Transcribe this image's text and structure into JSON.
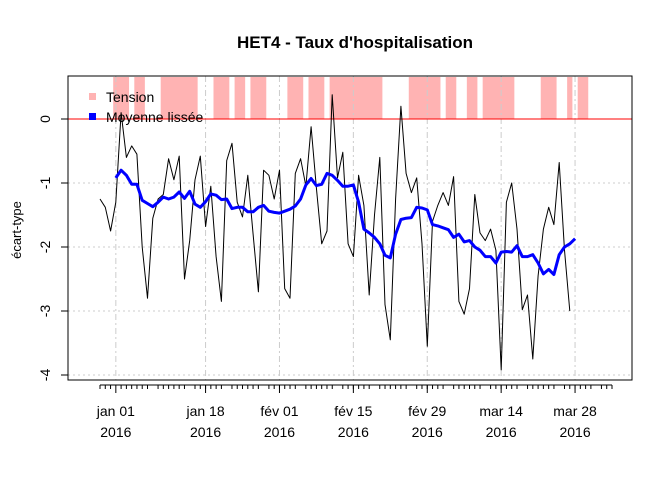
{
  "chart_data": {
    "type": "line",
    "title": "HET4 - Taux d'hospitalisation",
    "ylabel": "écart-type",
    "xlabel": "",
    "ylim": [
      -4.1,
      0.7
    ],
    "yticks": [
      0,
      -1,
      -2,
      -3,
      -4
    ],
    "grid": true,
    "legend_position": "top-left",
    "colors": {
      "raw": "#000000",
      "smoothed": "#0000ff",
      "tension": "#ffb3b3",
      "zero_line": "#ff0000",
      "grid": "#cccccc"
    },
    "x_start_date": "2015-12-29",
    "x_end_date": "2016-04-04",
    "x_ticks": [
      {
        "date": "2016-01-01",
        "line1": "jan 01",
        "line2": "2016"
      },
      {
        "date": "2016-01-18",
        "line1": "jan 18",
        "line2": "2016"
      },
      {
        "date": "2016-02-01",
        "line1": "fév 01",
        "line2": "2016"
      },
      {
        "date": "2016-02-15",
        "line1": "fév 15",
        "line2": "2016"
      },
      {
        "date": "2016-02-29",
        "line1": "fév 29",
        "line2": "2016"
      },
      {
        "date": "2016-03-14",
        "line1": "mar 14",
        "line2": "2016"
      },
      {
        "date": "2016-03-28",
        "line1": "mar 28",
        "line2": "2016"
      }
    ],
    "series": [
      {
        "name": "Tension",
        "kind": "bars",
        "periods": [
          [
            "2016-01-01",
            "2016-01-03"
          ],
          [
            "2016-01-05",
            "2016-01-06"
          ],
          [
            "2016-01-10",
            "2016-01-16"
          ],
          [
            "2016-01-20",
            "2016-01-22"
          ],
          [
            "2016-01-24",
            "2016-01-25"
          ],
          [
            "2016-01-27",
            "2016-01-29"
          ],
          [
            "2016-02-03",
            "2016-02-05"
          ],
          [
            "2016-02-07",
            "2016-02-09"
          ],
          [
            "2016-02-11",
            "2016-02-20"
          ],
          [
            "2016-02-26",
            "2016-03-02"
          ],
          [
            "2016-03-04",
            "2016-03-05"
          ],
          [
            "2016-03-08",
            "2016-03-09"
          ],
          [
            "2016-03-11",
            "2016-03-16"
          ],
          [
            "2016-03-22",
            "2016-03-24"
          ],
          [
            "2016-03-27",
            "2016-03-27"
          ],
          [
            "2016-03-29",
            "2016-03-30"
          ]
        ]
      },
      {
        "name": "",
        "kind": "line",
        "start": "2015-12-29",
        "values": [
          -1.25,
          -1.38,
          -1.75,
          -1.3,
          0.1,
          -0.6,
          -0.42,
          -0.55,
          -2.0,
          -2.8,
          -1.55,
          -1.25,
          -1.18,
          -0.62,
          -0.95,
          -0.58,
          -2.5,
          -1.9,
          -0.95,
          -0.58,
          -1.68,
          -1.05,
          -2.15,
          -2.85,
          -0.65,
          -0.38,
          -1.3,
          -1.53,
          -0.88,
          -1.8,
          -2.7,
          -0.8,
          -0.88,
          -1.25,
          -0.8,
          -2.65,
          -2.8,
          -0.85,
          -0.62,
          -1.05,
          -0.12,
          -1.08,
          -1.95,
          -1.75,
          0.38,
          -0.92,
          -0.52,
          -1.95,
          -2.15,
          -0.88,
          -1.35,
          -2.75,
          -1.5,
          -0.6,
          -2.9,
          -3.45,
          -1.25,
          0.2,
          -0.85,
          -1.15,
          -0.92,
          -1.95,
          -3.55,
          -1.6,
          -1.35,
          -1.15,
          -1.35,
          -0.9,
          -2.85,
          -3.05,
          -2.65,
          -1.18,
          -1.78,
          -1.9,
          -1.72,
          -2.05,
          -3.92,
          -1.3,
          -1.0,
          -1.72,
          -2.98,
          -2.75,
          -3.75,
          -2.45,
          -1.72,
          -1.38,
          -1.65,
          -0.68,
          -2.05,
          -3.0
        ],
        "color": "#000000"
      },
      {
        "name": "Moyenne lissée",
        "kind": "line",
        "start": "2016-01-01",
        "values": [
          -0.92,
          -0.8,
          -0.88,
          -1.02,
          -1.02,
          -1.27,
          -1.32,
          -1.37,
          -1.3,
          -1.22,
          -1.25,
          -1.22,
          -1.14,
          -1.24,
          -1.13,
          -1.33,
          -1.38,
          -1.29,
          -1.17,
          -1.19,
          -1.26,
          -1.25,
          -1.4,
          -1.38,
          -1.38,
          -1.45,
          -1.45,
          -1.38,
          -1.35,
          -1.44,
          -1.46,
          -1.47,
          -1.44,
          -1.41,
          -1.36,
          -1.25,
          -1.03,
          -0.93,
          -1.04,
          -1.02,
          -0.85,
          -0.88,
          -0.96,
          -1.05,
          -1.05,
          -1.03,
          -1.3,
          -1.72,
          -1.78,
          -1.85,
          -1.95,
          -2.13,
          -2.17,
          -1.8,
          -1.57,
          -1.55,
          -1.54,
          -1.38,
          -1.39,
          -1.42,
          -1.65,
          -1.67,
          -1.7,
          -1.73,
          -1.85,
          -1.8,
          -1.92,
          -1.9,
          -2.0,
          -2.05,
          -2.15,
          -2.15,
          -2.25,
          -2.08,
          -2.07,
          -2.08,
          -1.98,
          -2.15,
          -2.15,
          -2.12,
          -2.25,
          -2.42,
          -2.35,
          -2.43,
          -2.12,
          -2.0,
          -1.95,
          -1.87
        ],
        "color": "#0000ff"
      }
    ]
  }
}
